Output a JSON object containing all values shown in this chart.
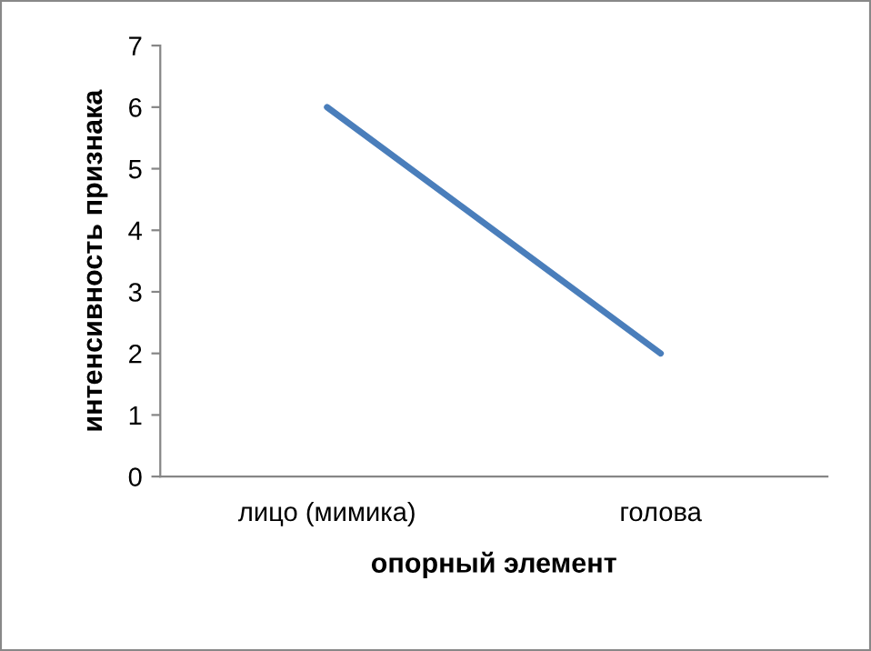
{
  "chart_data": {
    "type": "line",
    "xlabel": "опорный элемент",
    "ylabel": "интенсивность признака",
    "categories": [
      "лицо (мимика)",
      "голова"
    ],
    "series": [
      {
        "color": "#4a7ebb",
        "values": [
          6,
          2
        ]
      }
    ],
    "ylim": [
      0,
      7
    ],
    "yticks": [
      0,
      1,
      2,
      3,
      4,
      5,
      6,
      7
    ],
    "grid": false,
    "legend": false,
    "marker": "none",
    "line_style": "solid"
  }
}
